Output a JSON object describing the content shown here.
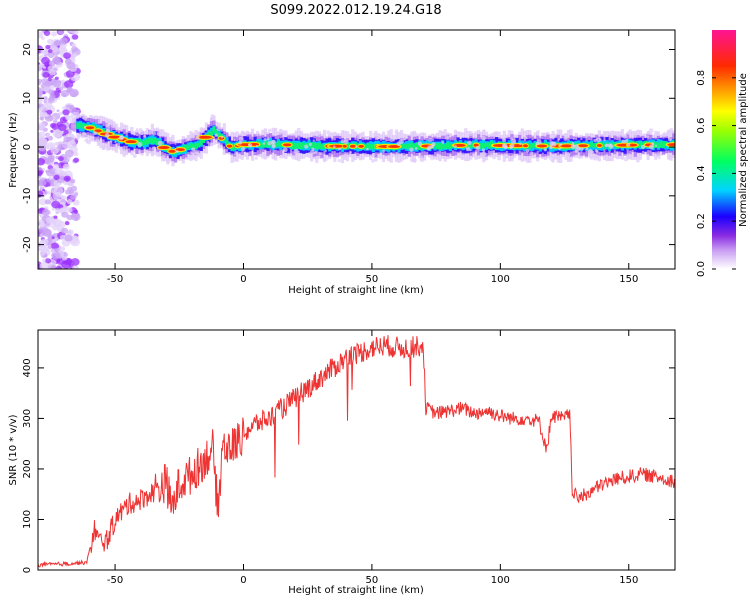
{
  "title": "S099.2022.012.19.24.G18",
  "colors": {
    "snr_line": "#ee3333",
    "background": "#ffffff"
  },
  "chart_data": [
    {
      "type": "heatmap",
      "xlabel": "Height of straight line (km)",
      "ylabel": "Frequency (Hz)",
      "xlim": [
        -80,
        168
      ],
      "ylim": [
        -25,
        24
      ],
      "xticks": [
        -50,
        0,
        50,
        100,
        150
      ],
      "yticks": [
        -20,
        -10,
        0,
        10,
        20
      ],
      "colorbar": {
        "label": "Normalized spectral amplitude",
        "range": [
          0,
          1
        ],
        "ticks": [
          0.0,
          0.2,
          0.4,
          0.6,
          0.8
        ]
      },
      "ridge": {
        "description_x": [
          -65,
          -60,
          -55,
          -50,
          -45,
          -40,
          -35,
          -30,
          -27,
          -22,
          -18,
          -15,
          -12,
          -8,
          -5,
          0,
          10,
          30,
          60,
          90,
          120,
          150,
          168
        ],
        "frequency": [
          4.5,
          4.0,
          3.0,
          2.0,
          1.2,
          0.8,
          1.5,
          -0.5,
          -1.0,
          0.0,
          0.5,
          2.0,
          3.5,
          1.5,
          0.0,
          0.5,
          0.6,
          0.2,
          0.1,
          0.4,
          0.2,
          0.4,
          0.5
        ]
      },
      "noise_region_x": [
        -80,
        -65
      ]
    },
    {
      "type": "line",
      "xlabel": "Height of straight line (km)",
      "ylabel": "SNR (10 * v/v)",
      "xlim": [
        -80,
        168
      ],
      "ylim": [
        0,
        475
      ],
      "xticks": [
        -50,
        0,
        50,
        100,
        150
      ],
      "yticks": [
        0,
        100,
        200,
        300,
        400
      ],
      "series": [
        {
          "x": [
            -80,
            -70,
            -61,
            -58,
            -56,
            -53,
            -50,
            -45,
            -40,
            -35,
            -30,
            -28,
            -25,
            -20,
            -15,
            -12,
            -10,
            -8,
            -5,
            0,
            5,
            10,
            15,
            20,
            25,
            30,
            35,
            40,
            45,
            50,
            55,
            60,
            65,
            70,
            71,
            75,
            80,
            85,
            90,
            95,
            100,
            105,
            110,
            115,
            118,
            120,
            125,
            127,
            128,
            130,
            135,
            140,
            145,
            150,
            155,
            160,
            165,
            168
          ],
          "y": [
            10,
            12,
            15,
            80,
            55,
            60,
            100,
            130,
            140,
            155,
            175,
            120,
            170,
            190,
            220,
            240,
            120,
            250,
            240,
            270,
            290,
            300,
            320,
            340,
            360,
            380,
            400,
            420,
            430,
            440,
            445,
            440,
            440,
            445,
            320,
            310,
            315,
            320,
            310,
            315,
            305,
            300,
            300,
            295,
            240,
            305,
            300,
            310,
            160,
            140,
            155,
            170,
            180,
            185,
            190,
            185,
            180,
            175
          ]
        }
      ]
    }
  ]
}
